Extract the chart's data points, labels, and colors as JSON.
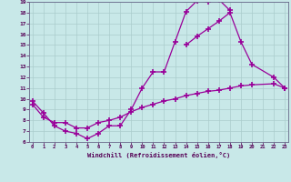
{
  "xlabel": "Windchill (Refroidissement éolien,°C)",
  "bg_color": "#c8e8e8",
  "grid_color": "#aacccc",
  "line_color": "#990099",
  "xmin": 0,
  "xmax": 23,
  "ymin": 6,
  "ymax": 19,
  "line1_x": [
    0,
    1,
    2,
    3,
    4,
    5,
    6,
    7,
    8,
    9,
    10,
    11,
    12,
    13,
    14,
    15,
    16,
    17,
    18
  ],
  "line1_y": [
    9.8,
    8.7,
    7.5,
    7.0,
    6.8,
    6.3,
    6.8,
    7.5,
    7.5,
    9.0,
    11.0,
    12.5,
    12.5,
    15.3,
    18.1,
    19.1,
    19.0,
    19.2,
    18.2
  ],
  "line2_x": [
    0,
    1,
    2,
    3,
    4,
    5,
    6,
    7,
    8,
    9,
    10,
    11,
    12,
    13,
    14,
    15,
    16,
    17,
    18,
    19,
    20,
    22,
    23
  ],
  "line2_y": [
    9.5,
    8.3,
    7.8,
    7.8,
    7.3,
    7.3,
    7.8,
    8.0,
    8.3,
    8.8,
    9.2,
    9.5,
    9.8,
    10.0,
    10.3,
    10.5,
    10.7,
    10.8,
    11.0,
    11.2,
    11.3,
    11.4,
    11.0
  ],
  "line3_x": [
    14,
    15,
    16,
    17,
    18,
    19,
    20,
    22,
    23
  ],
  "line3_y": [
    15.0,
    15.8,
    16.5,
    17.2,
    18.0,
    15.3,
    13.2,
    12.0,
    11.0
  ]
}
